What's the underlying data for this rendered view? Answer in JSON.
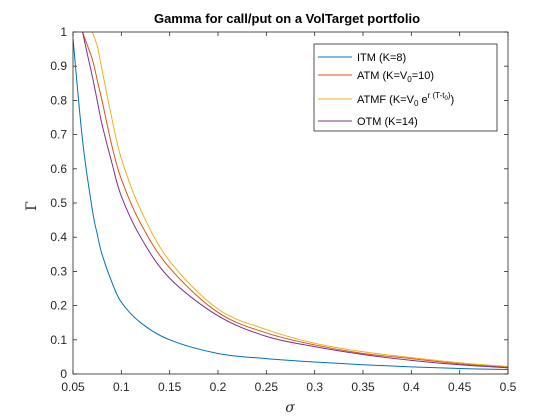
{
  "chart_data": {
    "type": "line",
    "title": "Gamma for call/put on a VolTarget portfolio",
    "xlabel": "σ",
    "ylabel": "Γ",
    "xlim": [
      0.05,
      0.5
    ],
    "ylim": [
      0,
      1
    ],
    "xticks": [
      "0.05",
      "0.1",
      "0.15",
      "0.2",
      "0.25",
      "0.3",
      "0.35",
      "0.4",
      "0.45",
      "0.5"
    ],
    "yticks": [
      "0",
      "0.1",
      "0.2",
      "0.3",
      "0.4",
      "0.5",
      "0.6",
      "0.7",
      "0.8",
      "0.9",
      "1"
    ],
    "grid": false,
    "legend_position": "top-right",
    "x": [
      0.05,
      0.06,
      0.07,
      0.075,
      0.08,
      0.09,
      0.1,
      0.12,
      0.15,
      0.2,
      0.25,
      0.3,
      0.35,
      0.4,
      0.45,
      0.5
    ],
    "series": [
      {
        "name": "ITM (K=8)",
        "legend_parts": [
          {
            "t": "ITM (K=8)"
          }
        ],
        "color": "#0072BD",
        "values": [
          0.98,
          0.68,
          0.48,
          0.41,
          0.35,
          0.27,
          0.21,
          0.15,
          0.1,
          0.06,
          0.045,
          0.035,
          0.027,
          0.021,
          0.016,
          0.013
        ]
      },
      {
        "name": "ATM (K=V0=10)",
        "legend_parts": [
          {
            "t": "ATM (K=V"
          },
          {
            "t": "0",
            "sub": true
          },
          {
            "t": "=10)"
          }
        ],
        "color": "#D95319",
        "values": [
          null,
          1.0,
          0.92,
          0.86,
          0.8,
          0.67,
          0.57,
          0.44,
          0.31,
          0.18,
          0.12,
          0.085,
          0.06,
          0.045,
          0.03,
          0.02
        ]
      },
      {
        "name": "ATMF (K=V0 e^r(T-t0))",
        "legend_parts": [
          {
            "t": "ATMF (K=V"
          },
          {
            "t": "0",
            "sub": true
          },
          {
            "t": " e"
          },
          {
            "t": "r (T-t",
            "sup": true
          },
          {
            "t": "0",
            "supsub": true
          },
          {
            "t": ")",
            "sup": true
          },
          {
            "t": ")"
          }
        ],
        "color": "#EDB120",
        "values": [
          null,
          null,
          1.0,
          0.96,
          0.89,
          0.75,
          0.63,
          0.48,
          0.33,
          0.19,
          0.13,
          0.09,
          0.065,
          0.048,
          0.033,
          0.022
        ]
      },
      {
        "name": "OTM (K=14)",
        "legend_parts": [
          {
            "t": "OTM (K=14)"
          }
        ],
        "color": "#7E2F8E",
        "values": [
          null,
          1.0,
          0.87,
          0.8,
          0.73,
          0.62,
          0.52,
          0.4,
          0.28,
          0.17,
          0.11,
          0.08,
          0.057,
          0.04,
          0.027,
          0.018
        ]
      }
    ]
  }
}
